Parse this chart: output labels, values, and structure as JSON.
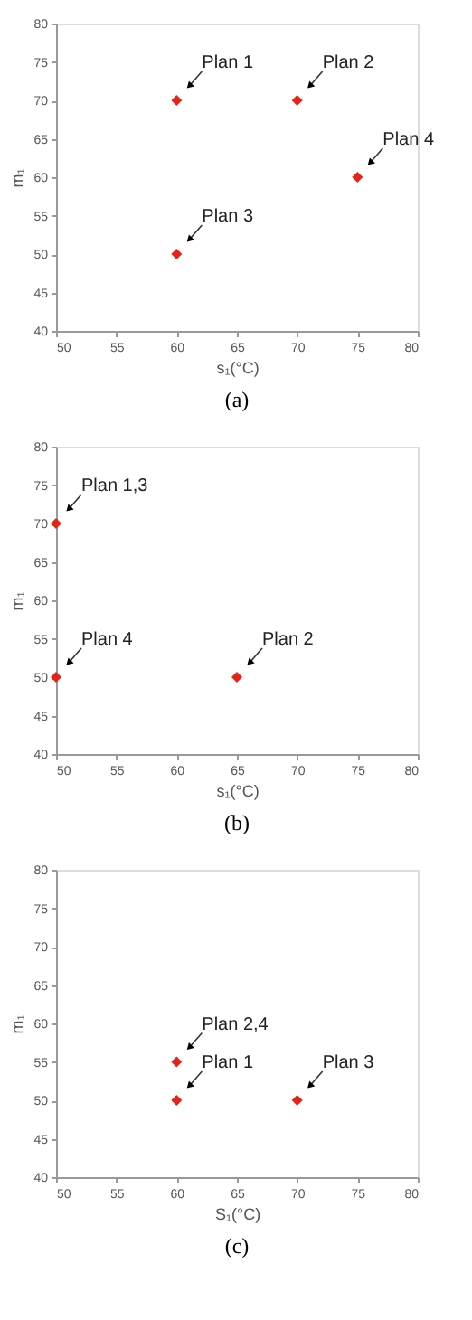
{
  "chart_data": [
    {
      "type": "scatter",
      "xlabel": "s₁(°C)",
      "ylabel": "m₁",
      "x": [
        60,
        70,
        60,
        75
      ],
      "values": [
        70,
        70,
        50,
        60
      ],
      "color": "#e0261b",
      "marker": "diamond",
      "xlim": [
        50,
        80
      ],
      "ylim": [
        40,
        80
      ],
      "xticks": [
        50,
        55,
        60,
        65,
        70,
        75,
        80
      ],
      "yticks": [
        40,
        45,
        50,
        55,
        60,
        65,
        70,
        75,
        80
      ],
      "grid": false,
      "annotations": [
        {
          "text": "Plan 1",
          "x": 60,
          "y": 70
        },
        {
          "text": "Plan 2",
          "x": 70,
          "y": 70
        },
        {
          "text": "Plan 3",
          "x": 60,
          "y": 50
        },
        {
          "text": "Plan 4",
          "x": 75,
          "y": 60
        },
        "(a)"
      ]
    },
    {
      "type": "scatter",
      "xlabel": "s₁(°C)",
      "ylabel": "m₁",
      "x": [
        50,
        50,
        65
      ],
      "values": [
        70,
        50,
        50
      ],
      "color": "#e0261b",
      "marker": "diamond",
      "xlim": [
        50,
        80
      ],
      "ylim": [
        40,
        80
      ],
      "xticks": [
        50,
        55,
        60,
        65,
        70,
        75,
        80
      ],
      "yticks": [
        40,
        45,
        50,
        55,
        60,
        65,
        70,
        75,
        80
      ],
      "grid": false,
      "annotations": [
        {
          "text": "Plan 1,3",
          "x": 50,
          "y": 70
        },
        {
          "text": "Plan 4",
          "x": 50,
          "y": 50
        },
        {
          "text": "Plan 2",
          "x": 65,
          "y": 50
        },
        "(b)"
      ]
    },
    {
      "type": "scatter",
      "xlabel": "S₁(°C)",
      "ylabel": "m₁",
      "x": [
        60,
        60,
        70
      ],
      "values": [
        55,
        50,
        50
      ],
      "color": "#e0261b",
      "marker": "diamond",
      "xlim": [
        50,
        80
      ],
      "ylim": [
        40,
        80
      ],
      "xticks": [
        50,
        55,
        60,
        65,
        70,
        75,
        80
      ],
      "yticks": [
        40,
        45,
        50,
        55,
        60,
        65,
        70,
        75,
        80
      ],
      "grid": false,
      "annotations": [
        {
          "text": "Plan 2,4",
          "x": 60,
          "y": 55
        },
        {
          "text": "Plan 1",
          "x": 60,
          "y": 50
        },
        {
          "text": "Plan 3",
          "x": 70,
          "y": 50
        },
        "(c)"
      ]
    }
  ]
}
